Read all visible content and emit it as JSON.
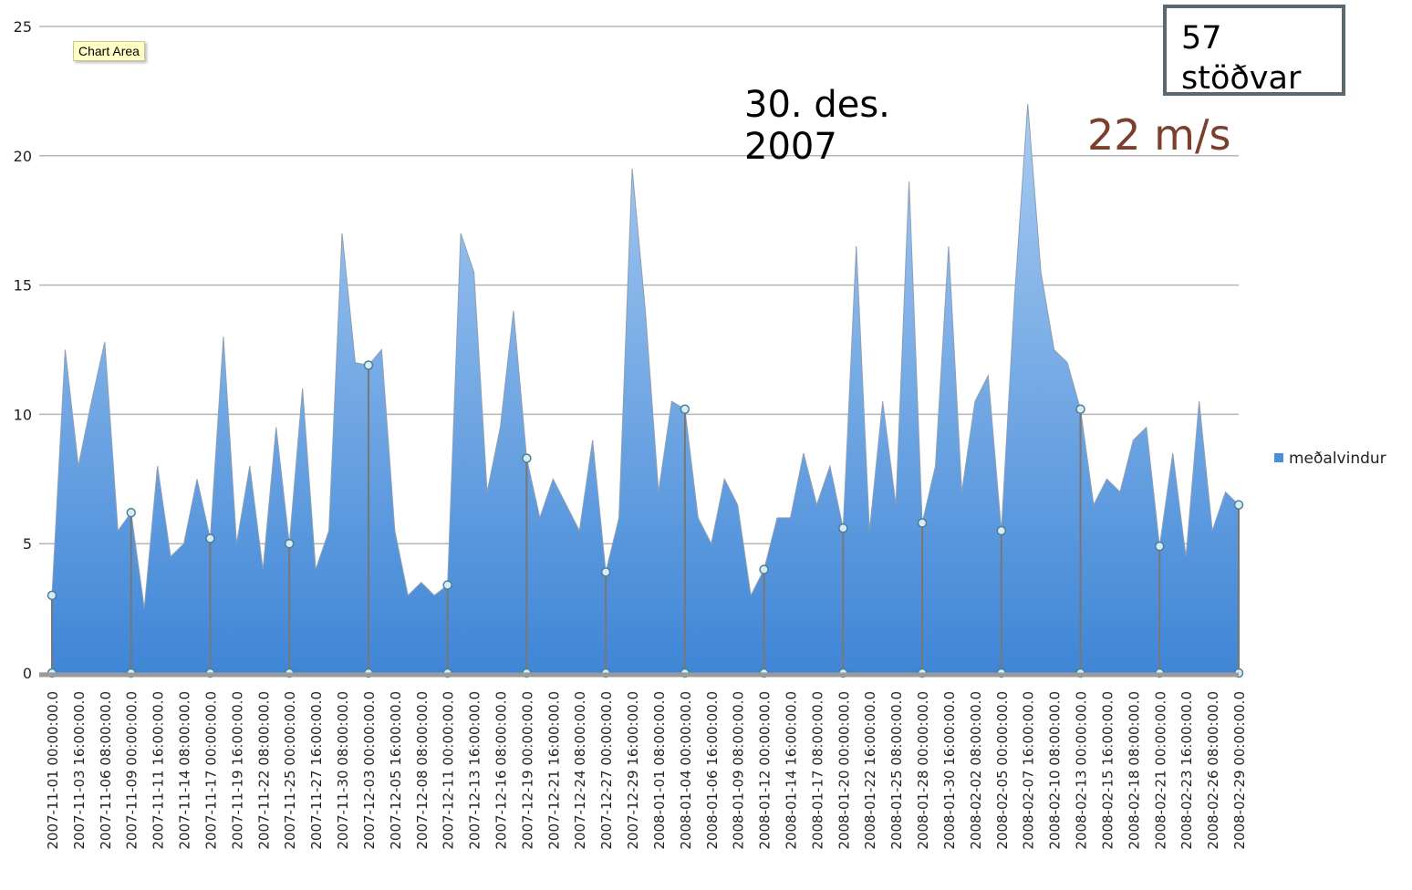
{
  "chart_data": {
    "type": "area",
    "tooltip": "Chart Area",
    "annotations": [
      "30. des. 2007",
      "22 m/s",
      "57 stöðvar"
    ],
    "categories": [
      "2007-11-01 00:00:00.0",
      null,
      "2007-11-03 16:00:00.0",
      null,
      "2007-11-06 08:00:00.0",
      null,
      "2007-11-09 00:00:00.0",
      null,
      "2007-11-11 16:00:00.0",
      null,
      "2007-11-14 08:00:00.0",
      null,
      "2007-11-17 00:00:00.0",
      null,
      "2007-11-19 16:00:00.0",
      null,
      "2007-11-22 08:00:00.0",
      null,
      "2007-11-25 00:00:00.0",
      null,
      "2007-11-27 16:00:00.0",
      null,
      "2007-11-30 08:00:00.0",
      null,
      "2007-12-03 00:00:00.0",
      null,
      "2007-12-05 16:00:00.0",
      null,
      "2007-12-08 08:00:00.0",
      null,
      "2007-12-11 00:00:00.0",
      null,
      "2007-12-13 16:00:00.0",
      null,
      "2007-12-16 08:00:00.0",
      null,
      "2007-12-19 00:00:00.0",
      null,
      "2007-12-21 16:00:00.0",
      null,
      "2007-12-24 08:00:00.0",
      null,
      "2007-12-27 00:00:00.0",
      null,
      "2007-12-29 16:00:00.0",
      null,
      "2008-01-01 08:00:00.0",
      null,
      "2008-01-04 00:00:00.0",
      null,
      "2008-01-06 16:00:00.0",
      null,
      "2008-01-09 08:00:00.0",
      null,
      "2008-01-12 00:00:00.0",
      null,
      "2008-01-14 16:00:00.0",
      null,
      "2008-01-17 08:00:00.0",
      null,
      "2008-01-20 00:00:00.0",
      null,
      "2008-01-22 16:00:00.0",
      null,
      "2008-01-25 08:00:00.0",
      null,
      "2008-01-28 00:00:00.0",
      null,
      "2008-01-30 16:00:00.0",
      null,
      "2008-02-02 08:00:00.0",
      null,
      "2008-02-05 00:00:00.0",
      null,
      "2008-02-07 16:00:00.0",
      null,
      "2008-02-10 08:00:00.0",
      null,
      "2008-02-13 00:00:00.0",
      null,
      "2008-02-15 16:00:00.0",
      null,
      "2008-02-18 08:00:00.0",
      null,
      "2008-02-21 00:00:00.0",
      null,
      "2008-02-23 16:00:00.0",
      null,
      "2008-02-26 08:00:00.0",
      null,
      "2008-02-29 00:00:00.0"
    ],
    "series": [
      {
        "name": "meðalvindur",
        "color": "#4a8fd9",
        "values": [
          3.0,
          12.5,
          8.0,
          10.5,
          12.8,
          5.5,
          6.2,
          2.5,
          8.0,
          4.5,
          5.0,
          7.5,
          5.2,
          13.0,
          5.0,
          8.0,
          4.0,
          9.5,
          5.0,
          11.0,
          4.0,
          5.5,
          17.0,
          12.0,
          11.9,
          12.5,
          5.5,
          3.0,
          3.5,
          3.0,
          3.4,
          17.0,
          15.5,
          7.0,
          9.5,
          14.0,
          8.3,
          6.0,
          7.5,
          6.5,
          5.5,
          9.0,
          3.9,
          6.0,
          19.5,
          14.0,
          7.0,
          10.5,
          10.2,
          6.0,
          5.0,
          7.5,
          6.5,
          3.0,
          4.0,
          6.0,
          6.0,
          8.5,
          6.5,
          8.0,
          5.6,
          16.5,
          5.5,
          10.5,
          6.5,
          19.0,
          5.8,
          8.0,
          16.5,
          7.0,
          10.5,
          11.5,
          5.5,
          14.5,
          22.0,
          15.5,
          12.5,
          12.0,
          10.2,
          6.5,
          7.5,
          7.0,
          9.0,
          9.5,
          4.9,
          8.5,
          4.5,
          10.5,
          5.5,
          7.0,
          6.5
        ]
      }
    ],
    "ylim": [
      0,
      25
    ],
    "yticks": [
      0,
      5,
      10,
      15,
      20,
      25
    ],
    "grid": true,
    "legend": "right"
  }
}
